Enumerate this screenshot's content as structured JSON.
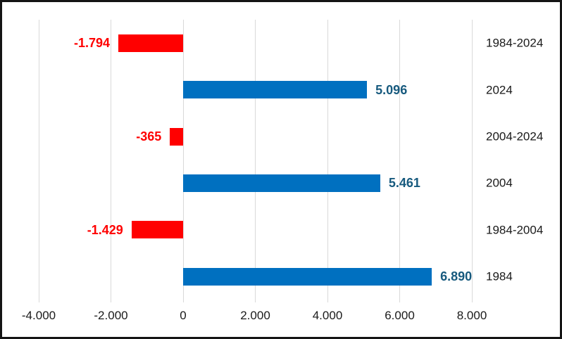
{
  "frame": {
    "background_color": "#ffffff",
    "border_color": "#141414"
  },
  "chart_data": {
    "type": "bar",
    "orientation": "horizontal",
    "title": "",
    "categories": [
      "1984-2024",
      "2024",
      "2004-2024",
      "2004",
      "1984-2004",
      "1984"
    ],
    "values": [
      -1794,
      5096,
      -365,
      5461,
      -1429,
      6890
    ],
    "value_labels": [
      "-1.794",
      "5.096",
      "-365",
      "5.461",
      "-1.429",
      "6.890"
    ],
    "x_ticks": [
      -4000,
      -2000,
      0,
      2000,
      4000,
      6000,
      8000
    ],
    "x_tick_labels": [
      "-4.000",
      "-2.000",
      "0",
      "2.000",
      "4.000",
      "6.000",
      "8.000"
    ],
    "xlim": [
      -4000,
      8000
    ],
    "grid": true,
    "legend": "none",
    "colors": {
      "negative_bar": "#ff0000",
      "negative_label": "#ff0000",
      "positive_bar": "#0070c0",
      "positive_label": "#175a7e",
      "gridline": "#d9d9d9",
      "axis_text": "#1a1a1a"
    },
    "category_axis_side": "right",
    "value_label_position": "outside-end"
  }
}
